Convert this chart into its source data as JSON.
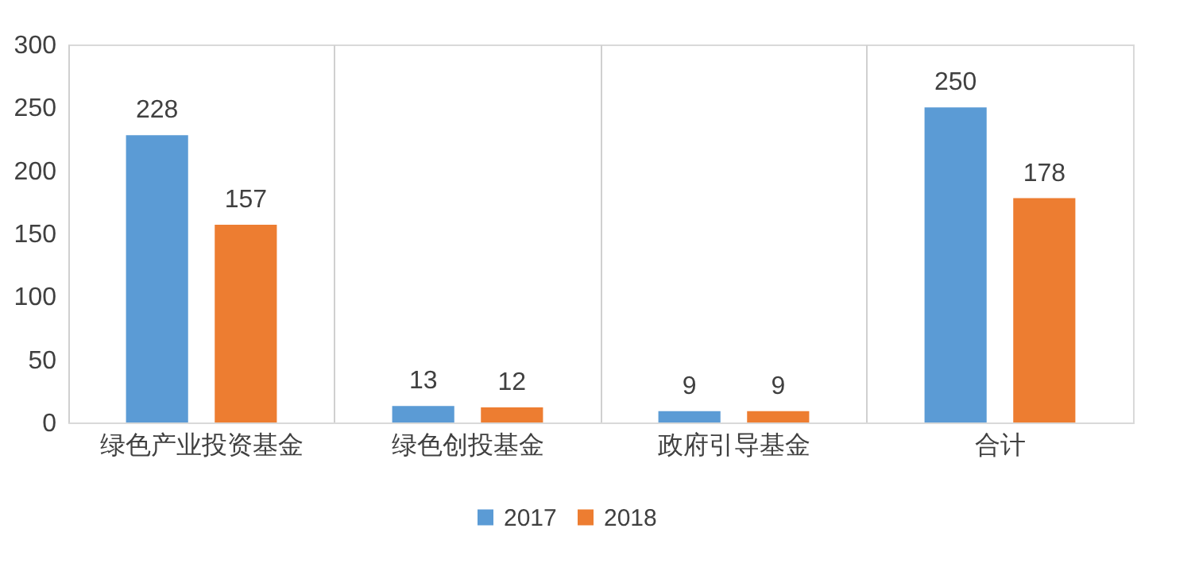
{
  "chart_data": {
    "type": "bar",
    "categories": [
      "绿色产业投资基金",
      "绿色创投基金",
      "政府引导基金",
      "合计"
    ],
    "series": [
      {
        "name": "2017",
        "color": "#5b9bd5",
        "values": [
          228,
          13,
          9,
          250
        ]
      },
      {
        "name": "2018",
        "color": "#ed7d31",
        "values": [
          157,
          12,
          9,
          178
        ]
      }
    ],
    "ylim": [
      0,
      300
    ],
    "yticks": [
      0,
      50,
      100,
      150,
      200,
      250,
      300
    ],
    "grid": "x",
    "legend": "bottom",
    "data_labels": true
  }
}
